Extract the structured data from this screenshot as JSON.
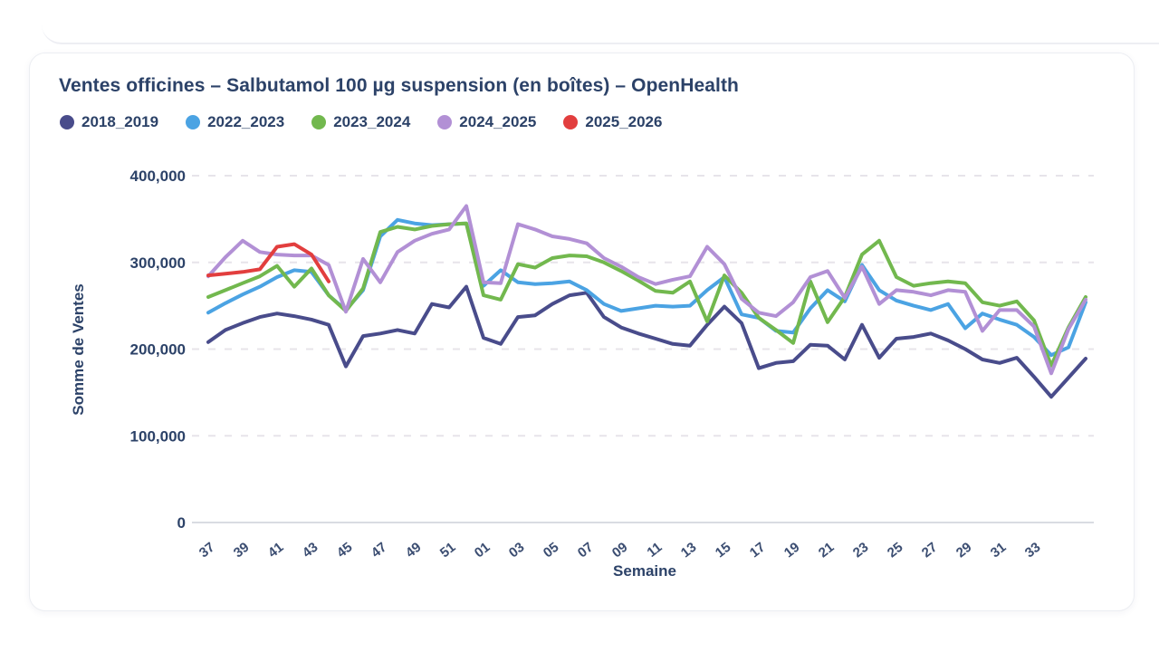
{
  "card": {
    "title": "Ventes officines – Salbutamol 100 µg suspension (en boîtes) – OpenHealth"
  },
  "chart_data": {
    "type": "line",
    "title": "Ventes officines – Salbutamol 100 µg suspension (en boîtes) – OpenHealth",
    "xlabel": "Semaine",
    "ylabel": "Somme de Ventes",
    "ylim": [
      0,
      400000
    ],
    "grid": "dashed horizontal",
    "legend_position": "top",
    "y_ticks": [
      400000,
      300000,
      200000,
      100000,
      0
    ],
    "y_tick_labels": [
      "400,000",
      "300,000",
      "200,000",
      "100,000",
      "0"
    ],
    "x": [
      "37",
      "38",
      "39",
      "40",
      "41",
      "42",
      "43",
      "44",
      "45",
      "46",
      "47",
      "48",
      "49",
      "50",
      "51",
      "52",
      "01",
      "02",
      "03",
      "04",
      "05",
      "06",
      "07",
      "08",
      "09",
      "10",
      "11",
      "12",
      "13",
      "14",
      "15",
      "16",
      "17",
      "18",
      "19",
      "20",
      "21",
      "22",
      "23",
      "24",
      "25",
      "26",
      "27",
      "28",
      "29",
      "30",
      "31",
      "32",
      "33",
      "34",
      "35",
      "36"
    ],
    "x_tick_labels": [
      "37",
      "39",
      "41",
      "43",
      "45",
      "47",
      "49",
      "51",
      "01",
      "03",
      "05",
      "07",
      "09",
      "11",
      "13",
      "15",
      "17",
      "19",
      "21",
      "23",
      "25",
      "27",
      "29",
      "31",
      "33"
    ],
    "series": [
      {
        "name": "2018_2019",
        "color": "#494c8b",
        "values": [
          208000,
          222000,
          230000,
          237000,
          241000,
          238000,
          234000,
          228000,
          180000,
          215000,
          218000,
          222000,
          218000,
          252000,
          248000,
          272000,
          213000,
          206000,
          237000,
          239000,
          252000,
          262000,
          265000,
          237000,
          225000,
          218000,
          212000,
          206000,
          204000,
          228000,
          249000,
          230000,
          178000,
          184000,
          186000,
          205000,
          204000,
          188000,
          228000,
          190000,
          212000,
          214000,
          218000,
          210000,
          200000,
          188000,
          184000,
          190000,
          168000,
          145000,
          167000,
          189000
        ]
      },
      {
        "name": "2022_2023",
        "color": "#4ba3e3",
        "values": [
          242000,
          253000,
          263000,
          272000,
          283000,
          291000,
          289000,
          262000,
          245000,
          268000,
          330000,
          349000,
          345000,
          343000,
          344000,
          345000,
          273000,
          291000,
          277000,
          275000,
          276000,
          278000,
          268000,
          252000,
          244000,
          247000,
          250000,
          249000,
          250000,
          268000,
          283000,
          240000,
          236000,
          221000,
          219000,
          247000,
          268000,
          255000,
          297000,
          268000,
          256000,
          250000,
          245000,
          252000,
          224000,
          241000,
          234000,
          228000,
          214000,
          193000,
          202000,
          254000
        ]
      },
      {
        "name": "2023_2024",
        "color": "#72b84e",
        "values": [
          260000,
          268000,
          276000,
          284000,
          296000,
          272000,
          293000,
          262000,
          244000,
          270000,
          335000,
          341000,
          338000,
          342000,
          344000,
          345000,
          262000,
          257000,
          298000,
          294000,
          305000,
          308000,
          307000,
          300000,
          290000,
          279000,
          267000,
          265000,
          278000,
          232000,
          285000,
          265000,
          236000,
          222000,
          207000,
          278000,
          231000,
          260000,
          309000,
          325000,
          283000,
          273000,
          276000,
          278000,
          276000,
          254000,
          250000,
          255000,
          233000,
          181000,
          225000,
          260000
        ]
      },
      {
        "name": "2024_2025",
        "color": "#b290d5",
        "values": [
          284000,
          306000,
          325000,
          312000,
          309000,
          308000,
          308000,
          297000,
          243000,
          304000,
          277000,
          312000,
          325000,
          333000,
          338000,
          365000,
          277000,
          276000,
          344000,
          338000,
          330000,
          327000,
          322000,
          305000,
          295000,
          283000,
          275000,
          280000,
          284000,
          318000,
          298000,
          258000,
          242000,
          238000,
          254000,
          283000,
          290000,
          259000,
          295000,
          252000,
          268000,
          266000,
          262000,
          268000,
          266000,
          221000,
          245000,
          245000,
          226000,
          172000,
          223000,
          257000
        ]
      },
      {
        "name": "2025_2026",
        "color": "#e23e3e",
        "values": [
          285000,
          287000,
          289000,
          292000,
          318000,
          321000,
          309000,
          278000,
          null,
          null,
          null,
          null,
          null,
          null,
          null,
          null,
          null,
          null,
          null,
          null,
          null,
          null,
          null,
          null,
          null,
          null,
          null,
          null,
          null,
          null,
          null,
          null,
          null,
          null,
          null,
          null,
          null,
          null,
          null,
          null,
          null,
          null,
          null,
          null,
          null,
          null,
          null,
          null,
          null,
          null,
          null,
          null
        ]
      }
    ]
  }
}
